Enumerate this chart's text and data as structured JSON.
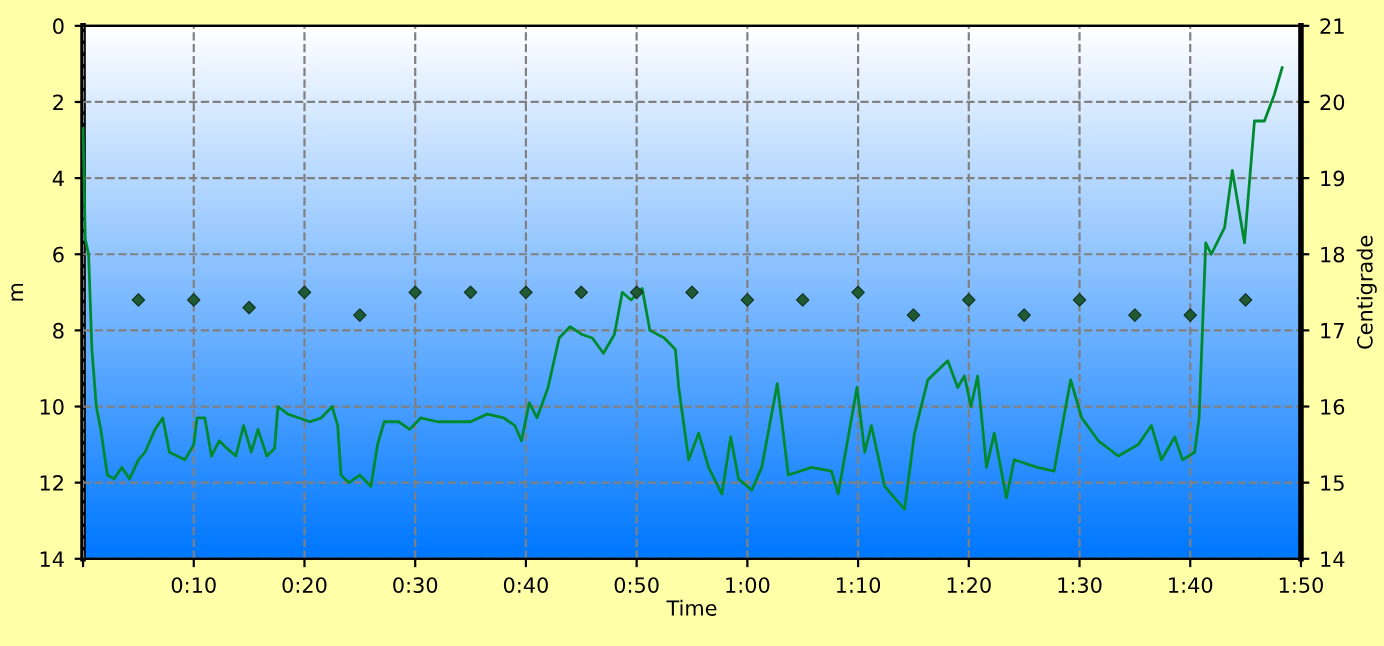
{
  "chart_data": {
    "type": "line",
    "xlabel": "Time",
    "ylabel": "m",
    "y2label": "Centigrade",
    "xlim": [
      0,
      110
    ],
    "xticks": [
      {
        "value": 0,
        "label": null
      },
      {
        "value": 10,
        "label": "0:10"
      },
      {
        "value": 20,
        "label": "0:20"
      },
      {
        "value": 30,
        "label": "0:30"
      },
      {
        "value": 40,
        "label": "0:40"
      },
      {
        "value": 50,
        "label": "0:50"
      },
      {
        "value": 60,
        "label": "1:00"
      },
      {
        "value": 70,
        "label": "1:10"
      },
      {
        "value": 80,
        "label": "1:20"
      },
      {
        "value": 90,
        "label": "1:30"
      },
      {
        "value": 100,
        "label": "1:40"
      },
      {
        "value": 110,
        "label": "1:50"
      }
    ],
    "ylim": [
      14,
      0
    ],
    "yticks": [
      0,
      2,
      4,
      6,
      8,
      10,
      12,
      14
    ],
    "y2lim": [
      14,
      21
    ],
    "y2ticks": [
      14,
      15,
      16,
      17,
      18,
      19,
      20,
      21
    ],
    "grid": true,
    "series": [
      {
        "color": "#008a2e",
        "line_style": "solid",
        "marker": "none",
        "x": [
          0,
          0.2,
          0.5,
          0.8,
          1.2,
          1.6,
          2.2,
          2.8,
          3.5,
          4.2,
          5,
          5.6,
          6.5,
          7.2,
          7.8,
          8.5,
          9.2,
          10,
          10.3,
          11,
          11.6,
          12.3,
          13,
          13.8,
          14.5,
          15.2,
          15.8,
          16.6,
          17.3,
          17.6,
          18.5,
          19.5,
          20.5,
          21.5,
          22.5,
          23,
          23.3,
          24,
          25,
          26,
          26.6,
          27.2,
          28.5,
          29.5,
          30.5,
          32,
          33.5,
          35,
          36.5,
          38,
          39,
          39.6,
          40.3,
          41,
          42,
          43,
          44,
          45,
          46,
          47,
          48,
          48.7,
          49.5,
          50.5,
          51.2,
          52.5,
          53.5,
          53.8,
          54.7,
          55.6,
          56.5,
          57.7,
          58.5,
          59.2,
          60.4,
          61.3,
          62.7,
          63.7,
          65.8,
          67.6,
          68.2,
          69.9,
          70.6,
          71.2,
          72.4,
          74.2,
          75.1,
          76.3,
          78.1,
          79.0,
          79.6,
          80.2,
          80.8,
          81.6,
          82.3,
          83.4,
          84.1,
          86.2,
          87.7,
          89.2,
          90.2,
          91.7,
          93.5,
          95.3,
          96.5,
          97.4,
          98.6,
          99.3,
          100.4,
          100.8,
          101.4,
          101.9,
          103.1,
          103.8,
          104.9,
          105.8,
          106.7,
          107.6,
          108.3
        ],
        "values": [
          2.7,
          5.6,
          6.0,
          8.5,
          10.0,
          10.6,
          11.8,
          11.9,
          11.6,
          11.9,
          11.4,
          11.2,
          10.6,
          10.3,
          11.2,
          11.3,
          11.4,
          11.0,
          10.3,
          10.3,
          11.3,
          10.9,
          11.1,
          11.3,
          10.5,
          11.2,
          10.6,
          11.3,
          11.1,
          10.0,
          10.2,
          10.3,
          10.4,
          10.3,
          10.0,
          10.5,
          11.8,
          12.0,
          11.8,
          12.1,
          11.0,
          10.4,
          10.4,
          10.6,
          10.3,
          10.4,
          10.4,
          10.4,
          10.2,
          10.3,
          10.5,
          10.9,
          9.9,
          10.3,
          9.5,
          8.2,
          7.9,
          8.1,
          8.2,
          8.6,
          8.1,
          7.0,
          7.2,
          6.9,
          8.0,
          8.2,
          8.5,
          9.5,
          11.4,
          10.7,
          11.6,
          12.3,
          10.8,
          11.9,
          12.2,
          11.6,
          9.4,
          11.8,
          11.6,
          11.7,
          12.3,
          9.5,
          11.2,
          10.5,
          12.1,
          12.7,
          10.7,
          9.3,
          8.8,
          9.5,
          9.2,
          10.0,
          9.2,
          11.6,
          10.7,
          12.4,
          11.4,
          11.6,
          11.7,
          9.3,
          10.3,
          10.9,
          11.3,
          11.0,
          10.5,
          11.4,
          10.8,
          11.4,
          11.2,
          10.3,
          5.7,
          6.0,
          5.3,
          3.8,
          5.7,
          2.5,
          2.5,
          1.8,
          1.1
        ]
      },
      {
        "type": "scatter",
        "axis": "y2",
        "color": "#1f5a32",
        "marker": "diamond",
        "x": [
          5,
          10,
          15,
          20,
          25,
          30,
          35,
          40,
          45,
          50,
          55,
          60,
          65,
          70,
          75,
          80,
          85,
          90,
          95,
          100,
          105
        ],
        "values": [
          17.4,
          17.4,
          17.3,
          17.5,
          17.2,
          17.5,
          17.5,
          17.5,
          17.5,
          17.5,
          17.5,
          17.4,
          17.4,
          17.5,
          17.2,
          17.4,
          17.2,
          17.4,
          17.2,
          17.2,
          17.4
        ]
      }
    ]
  }
}
